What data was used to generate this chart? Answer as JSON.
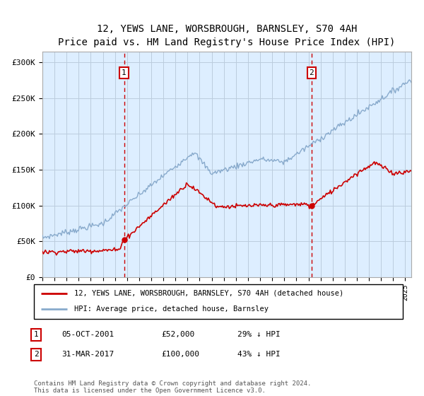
{
  "title": "12, YEWS LANE, WORSBROUGH, BARNSLEY, S70 4AH",
  "subtitle": "Price paid vs. HM Land Registry's House Price Index (HPI)",
  "legend_line1": "12, YEWS LANE, WORSBROUGH, BARNSLEY, S70 4AH (detached house)",
  "legend_line2": "HPI: Average price, detached house, Barnsley",
  "sale1_label": "1",
  "sale1_date": "05-OCT-2001",
  "sale1_price": "£52,000",
  "sale1_hpi": "29% ↓ HPI",
  "sale1_year": 2001.75,
  "sale1_value": 52000,
  "sale2_label": "2",
  "sale2_date": "31-MAR-2017",
  "sale2_price": "£100,000",
  "sale2_hpi": "43% ↓ HPI",
  "sale2_year": 2017.25,
  "sale2_value": 100000,
  "ylabel_ticks": [
    0,
    50000,
    100000,
    150000,
    200000,
    250000,
    300000
  ],
  "ylabel_labels": [
    "£0",
    "£50K",
    "£100K",
    "£150K",
    "£200K",
    "£250K",
    "£300K"
  ],
  "xlim": [
    1995,
    2025.5
  ],
  "ylim": [
    0,
    315000
  ],
  "bg_color": "#ddeeff",
  "red_color": "#cc0000",
  "blue_color": "#88aacc",
  "grid_color": "#bbccdd",
  "footer": "Contains HM Land Registry data © Crown copyright and database right 2024.\nThis data is licensed under the Open Government Licence v3.0."
}
